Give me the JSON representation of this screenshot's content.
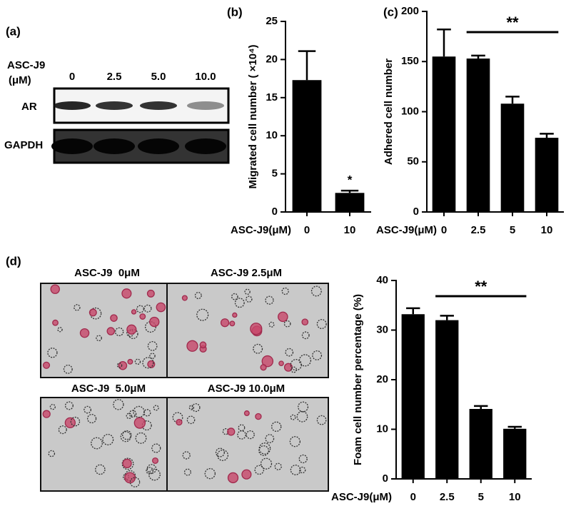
{
  "panel_labels": [
    "(a)",
    "(d)"
  ],
  "blot": {
    "treatment_label": "ASC-J9",
    "unit_label": "(μM)",
    "doses": [
      "0",
      "2.5",
      "5.0",
      "10.0"
    ],
    "rows": [
      "AR",
      "GAPDH"
    ]
  },
  "images": {
    "labels": [
      "ASC-J9  0μM",
      "ASC-J9 2.5μM",
      "ASC-J9  5.0μM",
      "ASC-J9 10.0μM"
    ]
  },
  "chart_data": [
    {
      "type": "bar",
      "title": "(b)",
      "ylabel": "Migrated cell number ( ×10⁴)",
      "xlabel": "ASC-J9(μM)",
      "categories": [
        "0",
        "10"
      ],
      "values": [
        17.3,
        2.5
      ],
      "errors": [
        3.8,
        0.3
      ],
      "color": "#000000",
      "ylim": [
        0,
        25
      ],
      "yticks": [
        0,
        5,
        10,
        15,
        20,
        25
      ],
      "significance": "*"
    },
    {
      "type": "bar",
      "title": "(c)",
      "ylabel": "Adhered cell number",
      "xlabel": "ASC-J9(μM)",
      "categories": [
        "0",
        "2.5",
        "5",
        "10"
      ],
      "values": [
        155,
        153,
        108,
        74
      ],
      "errors": [
        27,
        3,
        7,
        4
      ],
      "color": "#000000",
      "ylim": [
        0,
        200
      ],
      "yticks": [
        0,
        50,
        100,
        150,
        200
      ],
      "significance": "**"
    },
    {
      "type": "bar",
      "ylabel": "Foam cell number percentage (%)",
      "xlabel": "ASC-J9(μM)",
      "categories": [
        "0",
        "2.5",
        "5",
        "10"
      ],
      "values": [
        33.2,
        32,
        14.1,
        10.1
      ],
      "errors": [
        1.2,
        0.9,
        0.6,
        0.4
      ],
      "color": "#000000",
      "ylim": [
        0,
        40
      ],
      "yticks": [
        0,
        10,
        20,
        30,
        40
      ],
      "significance": "**"
    }
  ]
}
